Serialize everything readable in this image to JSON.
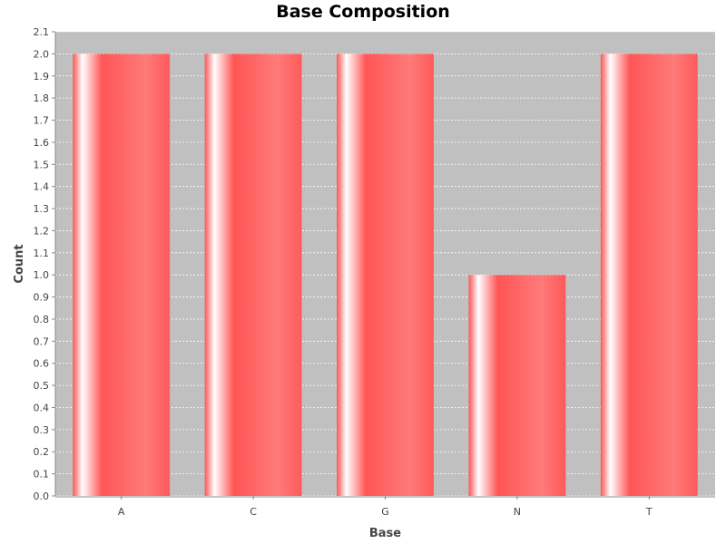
{
  "chart_data": {
    "type": "bar",
    "title": "Base Composition",
    "xlabel": "Base",
    "ylabel": "Count",
    "categories": [
      "A",
      "C",
      "G",
      "N",
      "T"
    ],
    "values": [
      2,
      2,
      2,
      1,
      2
    ],
    "ylim": [
      0,
      2.1
    ],
    "ytick_step": 0.1,
    "grid": true,
    "legend": "none",
    "colors": {
      "bar": "#ff5555",
      "bar_highlight": "#ffffff",
      "plot_background": "#c0c0c0",
      "grid": "#ffffff"
    }
  }
}
